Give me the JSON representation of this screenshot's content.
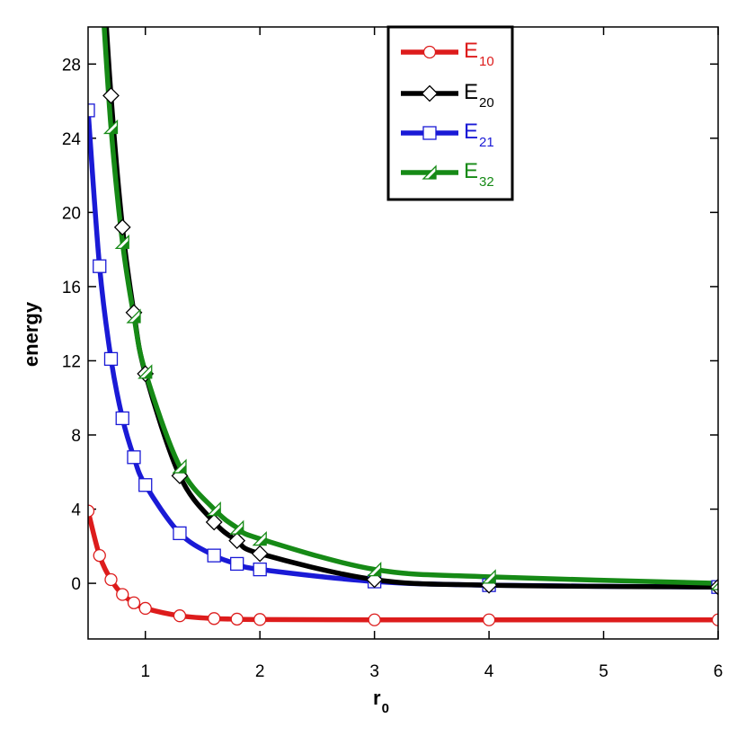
{
  "chart_data": {
    "type": "line",
    "xlabel": "r",
    "xlabel_sub": "0",
    "ylabel": "energy",
    "xlim": [
      0.5,
      6.0
    ],
    "ylim": [
      -3.0,
      30.0
    ],
    "x_ticks": [
      1,
      2,
      3,
      4,
      5,
      6
    ],
    "y_ticks": [
      0,
      4,
      8,
      12,
      16,
      20,
      24,
      28
    ],
    "grid": false,
    "legend_position": "top-center",
    "series": [
      {
        "name": "E",
        "name_sub": "10",
        "color": "#dd1c1c",
        "marker": "circle",
        "x": [
          0.5,
          0.6,
          0.7,
          0.8,
          0.9,
          1.0,
          1.3,
          1.6,
          1.8,
          2.0,
          3.0,
          4.0,
          6.0
        ],
        "y": [
          3.9,
          1.5,
          0.2,
          -0.6,
          -1.05,
          -1.35,
          -1.75,
          -1.9,
          -1.93,
          -1.95,
          -1.97,
          -1.97,
          -1.97
        ]
      },
      {
        "name": "E",
        "name_sub": "20",
        "color": "#000000",
        "marker": "diamond",
        "x": [
          0.7,
          0.8,
          0.9,
          1.0,
          1.3,
          1.6,
          1.8,
          2.0,
          3.0,
          4.0,
          6.0
        ],
        "y": [
          26.3,
          19.2,
          14.6,
          11.3,
          5.8,
          3.3,
          2.3,
          1.6,
          0.2,
          -0.1,
          -0.2
        ]
      },
      {
        "name": "E",
        "name_sub": "21",
        "color": "#1a1ad6",
        "marker": "square",
        "x": [
          0.5,
          0.6,
          0.7,
          0.8,
          0.9,
          1.0,
          1.3,
          1.6,
          1.8,
          2.0,
          3.0,
          4.0,
          6.0
        ],
        "y": [
          25.5,
          17.1,
          12.1,
          8.9,
          6.8,
          5.3,
          2.7,
          1.5,
          1.05,
          0.75,
          0.1,
          -0.1,
          -0.2
        ]
      },
      {
        "name": "E",
        "name_sub": "32",
        "color": "#168a16",
        "marker": "triangle",
        "x": [
          0.7,
          0.8,
          0.9,
          1.0,
          1.3,
          1.6,
          1.8,
          2.0,
          3.0,
          4.0,
          6.0
        ],
        "y": [
          24.6,
          18.4,
          14.4,
          11.4,
          6.3,
          4.0,
          3.0,
          2.4,
          0.75,
          0.35,
          0.0
        ]
      }
    ]
  }
}
